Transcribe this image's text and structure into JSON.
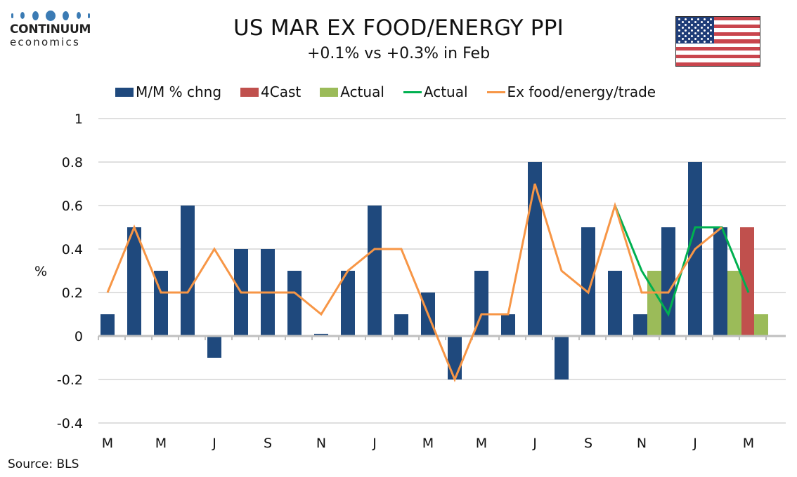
{
  "logo": {
    "name": "CONTINUUM",
    "sub": "economics"
  },
  "flag": {
    "name": "United States flag"
  },
  "source": "Source: BLS",
  "colors": {
    "mm": "#1f497d",
    "forecast": "#c0504d",
    "actual_bar": "#9bbb59",
    "actual_line": "#00b050",
    "ex_trade_line": "#f79646",
    "grid": "#bfbfbf"
  },
  "chart_data": {
    "type": "bar",
    "title": "US MAR EX FOOD/ENERGY PPI",
    "subtitle": "+0.1% vs +0.3% in Feb",
    "xlabel": "",
    "ylabel": "%",
    "ylim": [
      -0.4,
      1.0
    ],
    "yticks": [
      1,
      0.8,
      0.6,
      0.4,
      0.2,
      0,
      -0.2,
      -0.4
    ],
    "ytick_labels": [
      "1",
      "0.8",
      "0.6",
      "0.4",
      "0.2",
      "0",
      "-0.2",
      "-0.4"
    ],
    "grid": true,
    "legend_position": "top",
    "categories": [
      "Mar",
      "Apr",
      "May",
      "Jun",
      "Jul",
      "Aug",
      "Sep",
      "Oct",
      "Nov",
      "Dec",
      "Jan",
      "Feb",
      "Mar",
      "Apr",
      "May",
      "Jun",
      "Jul",
      "Aug",
      "Sep",
      "Oct",
      "Nov",
      "Dec",
      "Jan",
      "Feb",
      "Mar"
    ],
    "xtick_labels": [
      "M",
      "",
      "M",
      "",
      "J",
      "",
      "S",
      "",
      "N",
      "",
      "J",
      "",
      "M",
      "",
      "M",
      "",
      "J",
      "",
      "S",
      "",
      "N",
      "",
      "J",
      "",
      "M"
    ],
    "series": [
      {
        "name": "M/M % chng",
        "kind": "bar",
        "color_key": "mm",
        "values": [
          0.1,
          0.5,
          0.3,
          0.6,
          -0.1,
          0.4,
          0.4,
          0.3,
          0.01,
          0.3,
          0.6,
          0.1,
          0.2,
          -0.2,
          0.3,
          0.1,
          0.8,
          -0.2,
          0.5,
          0.3,
          0.1,
          0.5,
          0.8,
          0.5,
          null
        ]
      },
      {
        "name": "4Cast",
        "kind": "bar",
        "color_key": "forecast",
        "values": [
          null,
          null,
          null,
          null,
          null,
          null,
          null,
          null,
          null,
          null,
          null,
          null,
          null,
          null,
          null,
          null,
          null,
          null,
          null,
          null,
          null,
          null,
          null,
          null,
          0.5
        ]
      },
      {
        "name": "Actual",
        "kind": "bar",
        "color_key": "actual_bar",
        "values": [
          null,
          null,
          null,
          null,
          null,
          null,
          null,
          null,
          null,
          null,
          null,
          null,
          null,
          null,
          null,
          null,
          null,
          null,
          null,
          null,
          0.3,
          null,
          null,
          0.3,
          0.1
        ]
      },
      {
        "name": "Actual",
        "kind": "line",
        "color_key": "actual_line",
        "values": [
          null,
          null,
          null,
          null,
          null,
          null,
          null,
          null,
          null,
          null,
          null,
          null,
          null,
          null,
          null,
          null,
          null,
          null,
          null,
          0.6,
          0.3,
          0.1,
          0.5,
          0.5,
          0.2
        ]
      },
      {
        "name": "Ex food/energy/trade",
        "kind": "line",
        "color_key": "ex_trade_line",
        "values": [
          0.2,
          0.5,
          0.2,
          0.2,
          0.4,
          0.2,
          0.2,
          0.2,
          0.1,
          0.3,
          0.4,
          0.4,
          0.1,
          -0.2,
          0.1,
          0.1,
          0.7,
          0.3,
          0.2,
          0.6,
          0.2,
          0.2,
          0.4,
          0.5,
          null
        ]
      }
    ]
  }
}
